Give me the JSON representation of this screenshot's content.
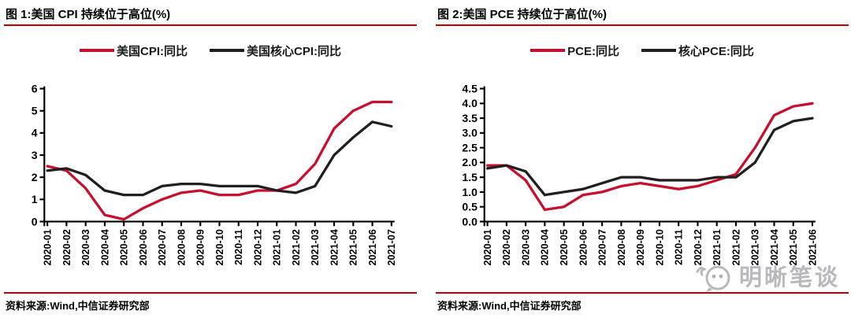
{
  "panels": [
    {
      "title": "图 1:美国 CPI 持续位于高位(%)",
      "source": "资料来源:Wind,中信证券研究部"
    },
    {
      "title": "图 2:美国 PCE 持续位于高位(%)",
      "source": "资料来源:Wind,中信证券研究部"
    }
  ],
  "watermark": {
    "text": "明晰笔谈"
  },
  "colors": {
    "rule_red": "#c00000",
    "series_red": "#c8102e",
    "series_black": "#231f20"
  },
  "chart_data": [
    {
      "type": "line",
      "title": "图 1:美国 CPI 持续位于高位(%)",
      "xlabel": "",
      "ylabel": "",
      "grid": false,
      "legend_position": "top",
      "ylim": [
        0,
        6
      ],
      "ytick_step": 1,
      "y_decimals": 0,
      "categories": [
        "2020-01",
        "2020-02",
        "2020-03",
        "2020-04",
        "2020-05",
        "2020-06",
        "2020-07",
        "2020-08",
        "2020-09",
        "2020-10",
        "2020-11",
        "2020-12",
        "2021-01",
        "2021-02",
        "2021-03",
        "2021-04",
        "2021-05",
        "2021-06",
        "2021-07"
      ],
      "series": [
        {
          "name": "美国CPI:同比",
          "color": "#c8102e",
          "values": [
            2.5,
            2.3,
            1.5,
            0.3,
            0.1,
            0.6,
            1.0,
            1.3,
            1.4,
            1.2,
            1.2,
            1.4,
            1.4,
            1.7,
            2.6,
            4.2,
            5.0,
            5.4,
            5.4
          ]
        },
        {
          "name": "美国核心CPI:同比",
          "color": "#231f20",
          "values": [
            2.3,
            2.4,
            2.1,
            1.4,
            1.2,
            1.2,
            1.6,
            1.7,
            1.7,
            1.6,
            1.6,
            1.6,
            1.4,
            1.3,
            1.6,
            3.0,
            3.8,
            4.5,
            4.3
          ]
        }
      ]
    },
    {
      "type": "line",
      "title": "图 2:美国 PCE 持续位于高位(%)",
      "xlabel": "",
      "ylabel": "",
      "grid": false,
      "legend_position": "top",
      "ylim": [
        0,
        4.5
      ],
      "ytick_step": 0.5,
      "y_decimals": 1,
      "categories": [
        "2020-01",
        "2020-02",
        "2020-03",
        "2020-04",
        "2020-05",
        "2020-06",
        "2020-07",
        "2020-08",
        "2020-09",
        "2020-10",
        "2020-11",
        "2020-12",
        "2021-01",
        "2021-02",
        "2021-03",
        "2021-04",
        "2021-05",
        "2021-06"
      ],
      "series": [
        {
          "name": "PCE:同比",
          "color": "#c8102e",
          "values": [
            1.9,
            1.9,
            1.4,
            0.4,
            0.5,
            0.9,
            1.0,
            1.2,
            1.3,
            1.2,
            1.1,
            1.2,
            1.4,
            1.6,
            2.5,
            3.6,
            3.9,
            4.0
          ]
        },
        {
          "name": "核心PCE:同比",
          "color": "#231f20",
          "values": [
            1.8,
            1.9,
            1.7,
            0.9,
            1.0,
            1.1,
            1.3,
            1.5,
            1.5,
            1.4,
            1.4,
            1.4,
            1.5,
            1.5,
            2.0,
            3.1,
            3.4,
            3.5
          ]
        }
      ]
    }
  ]
}
